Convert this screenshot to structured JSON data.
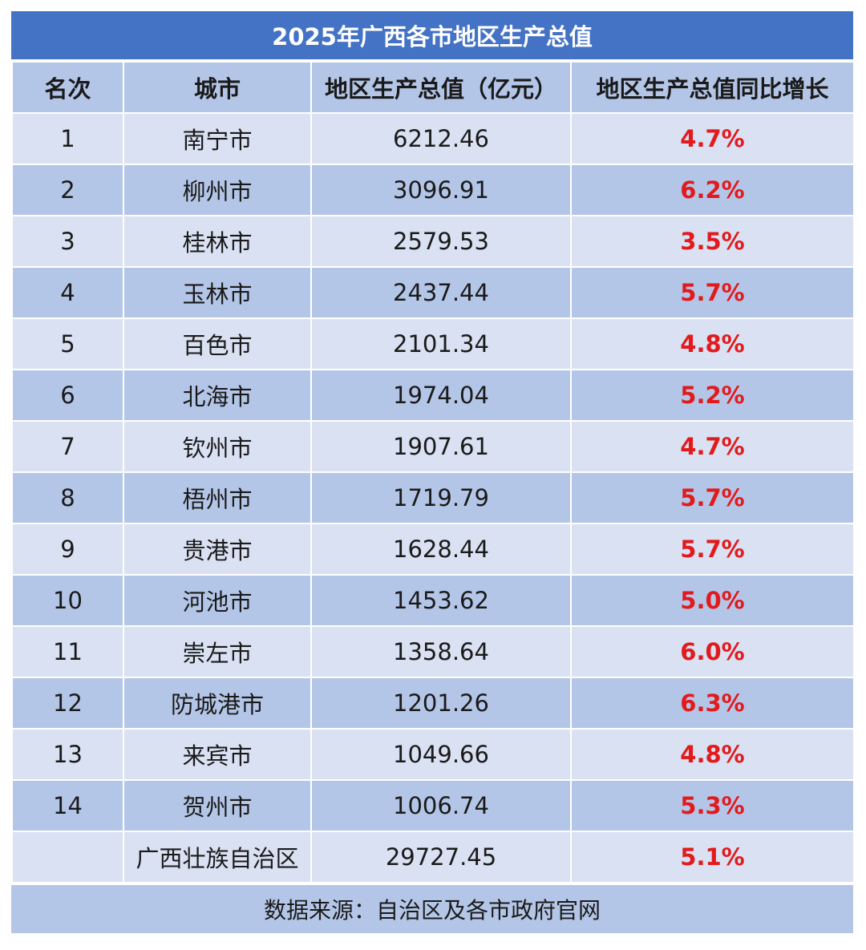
{
  "colors": {
    "title_bg": "#4472c4",
    "header_bg": "#b4c6e7",
    "row_light": "#d9e1f2",
    "row_dark": "#b4c6e7",
    "growth_text": "#e31a1c"
  },
  "chart_data": {
    "type": "table",
    "title": "2025年广西各市地区生产总值",
    "columns": [
      "名次",
      "城市",
      "地区生产总值（亿元）",
      "地区生产总值同比增长"
    ],
    "rows": [
      {
        "rank": "1",
        "city": "南宁市",
        "gdp": "6212.46",
        "growth": "4.7%"
      },
      {
        "rank": "2",
        "city": "柳州市",
        "gdp": "3096.91",
        "growth": "6.2%"
      },
      {
        "rank": "3",
        "city": "桂林市",
        "gdp": "2579.53",
        "growth": "3.5%"
      },
      {
        "rank": "4",
        "city": "玉林市",
        "gdp": "2437.44",
        "growth": "5.7%"
      },
      {
        "rank": "5",
        "city": "百色市",
        "gdp": "2101.34",
        "growth": "4.8%"
      },
      {
        "rank": "6",
        "city": "北海市",
        "gdp": "1974.04",
        "growth": "5.2%"
      },
      {
        "rank": "7",
        "city": "钦州市",
        "gdp": "1907.61",
        "growth": "4.7%"
      },
      {
        "rank": "8",
        "city": "梧州市",
        "gdp": "1719.79",
        "growth": "5.7%"
      },
      {
        "rank": "9",
        "city": "贵港市",
        "gdp": "1628.44",
        "growth": "5.7%"
      },
      {
        "rank": "10",
        "city": "河池市",
        "gdp": "1453.62",
        "growth": "5.0%"
      },
      {
        "rank": "11",
        "city": "崇左市",
        "gdp": "1358.64",
        "growth": "6.0%"
      },
      {
        "rank": "12",
        "city": "防城港市",
        "gdp": "1201.26",
        "growth": "6.3%"
      },
      {
        "rank": "13",
        "city": "来宾市",
        "gdp": "1049.66",
        "growth": "4.8%"
      },
      {
        "rank": "14",
        "city": "贺州市",
        "gdp": "1006.74",
        "growth": "5.3%"
      }
    ],
    "total": {
      "rank": "",
      "city": "广西壮族自治区",
      "gdp": "29727.45",
      "growth": "5.1%"
    },
    "source": "数据来源：自治区及各市政府官网"
  }
}
